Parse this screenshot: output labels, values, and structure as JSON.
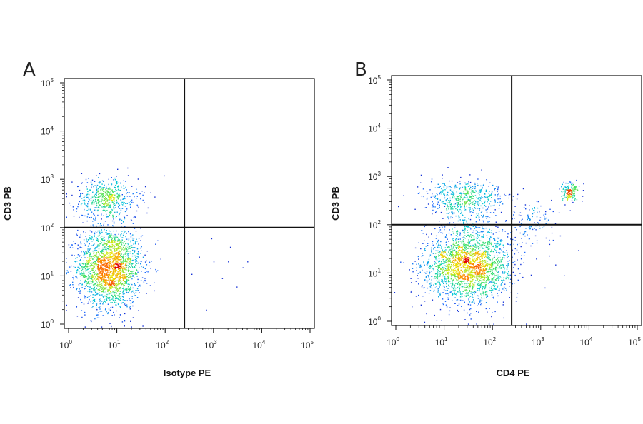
{
  "chart_data": [
    {
      "type": "scatter",
      "panel_label": "A",
      "xlabel": "Isotype PE",
      "ylabel": "CD3 PB",
      "xscale": "log",
      "yscale": "log",
      "xlim": [
        1,
        100000
      ],
      "ylim": [
        1,
        100000
      ],
      "tick_base": "10",
      "tick_exponents": [
        "0",
        "1",
        "2",
        "3",
        "4",
        "5"
      ],
      "quadrant_gate": {
        "x": 250,
        "y": 100
      },
      "populations": [
        {
          "name": "",
          "x_center": 7,
          "y_center": 15,
          "x_spread_decades": 0.33,
          "y_spread_decades": 0.42,
          "fraction": 0.78
        },
        {
          "name": "",
          "x_center": 6,
          "y_center": 400,
          "x_spread_decades": 0.33,
          "y_spread_decades": 0.22,
          "fraction": 0.2
        }
      ],
      "sparse_events": [
        [
          300,
          30
        ],
        [
          500,
          25
        ],
        [
          1000,
          20
        ],
        [
          2000,
          20
        ],
        [
          5000,
          20
        ],
        [
          900,
          60
        ],
        [
          2200,
          40
        ],
        [
          4000,
          15
        ],
        [
          1500,
          9
        ],
        [
          700,
          2
        ],
        [
          350,
          11
        ],
        [
          3000,
          6
        ]
      ],
      "grid": false,
      "colormap": [
        "#0a00b4",
        "#1f6bff",
        "#00c8d8",
        "#40e060",
        "#e8e800",
        "#ff7800",
        "#e00000"
      ]
    },
    {
      "type": "scatter",
      "panel_label": "B",
      "xlabel": "CD4 PE",
      "ylabel": "CD3 PB",
      "xscale": "log",
      "yscale": "log",
      "xlim": [
        1,
        100000
      ],
      "ylim": [
        1,
        100000
      ],
      "tick_base": "10",
      "tick_exponents": [
        "0",
        "1",
        "2",
        "3",
        "4",
        "5"
      ],
      "quadrant_gate": {
        "x": 250,
        "y": 100
      },
      "populations": [
        {
          "name": "",
          "x_center": 30,
          "y_center": 15,
          "x_spread_decades": 0.45,
          "y_spread_decades": 0.4,
          "fraction": 0.74
        },
        {
          "name": "",
          "x_center": 25,
          "y_center": 350,
          "x_spread_decades": 0.4,
          "y_spread_decades": 0.2,
          "fraction": 0.17
        },
        {
          "name": "",
          "x_center": 4000,
          "y_center": 500,
          "x_spread_decades": 0.1,
          "y_spread_decades": 0.1,
          "fraction": 0.05
        },
        {
          "name": "",
          "x_center": 600,
          "y_center": 120,
          "x_spread_decades": 0.25,
          "y_spread_decades": 0.25,
          "fraction": 0.04
        }
      ],
      "sparse_events": [
        [
          2000,
          15
        ],
        [
          3000,
          9
        ],
        [
          1500,
          40
        ],
        [
          6000,
          30
        ],
        [
          1200,
          5
        ],
        [
          800,
          20
        ],
        [
          4000,
          200
        ],
        [
          2500,
          60
        ]
      ],
      "grid": false,
      "colormap": [
        "#0a00b4",
        "#1f6bff",
        "#00c8d8",
        "#40e060",
        "#e8e800",
        "#ff7800",
        "#e00000"
      ]
    }
  ]
}
